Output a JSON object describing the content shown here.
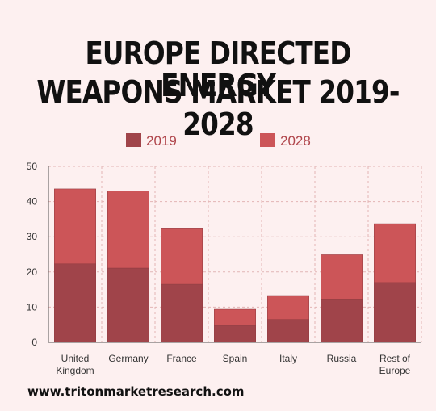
{
  "title_line1": "EUROPE DIRECTED ENERGY",
  "title_line2": "WEAPONS MARKET 2019-2028",
  "footer_url": "www.tritonmarketresearch.com",
  "colors": {
    "s2019": "#a0444a",
    "s2028": "#cc5558",
    "grid": "#e2b5b5",
    "axis": "#555555"
  },
  "chart_data": {
    "type": "bar",
    "stacked": true,
    "categories": [
      [
        "United",
        "Kingdom"
      ],
      [
        "Germany"
      ],
      [
        "France"
      ],
      [
        "Spain"
      ],
      [
        "Italy"
      ],
      [
        "Russia"
      ],
      [
        "Rest of",
        "Europe"
      ]
    ],
    "series": [
      {
        "name": "2019",
        "values": [
          22.3,
          21.1,
          16.5,
          4.8,
          6.5,
          12.3,
          17.0
        ]
      },
      {
        "name": "2028",
        "values": [
          21.3,
          21.9,
          16.0,
          4.6,
          6.8,
          12.6,
          16.7
        ]
      }
    ],
    "ylim": [
      0,
      50
    ],
    "yticks": [
      0,
      10,
      20,
      30,
      40,
      50
    ],
    "legend_position": "top",
    "grid": true
  }
}
